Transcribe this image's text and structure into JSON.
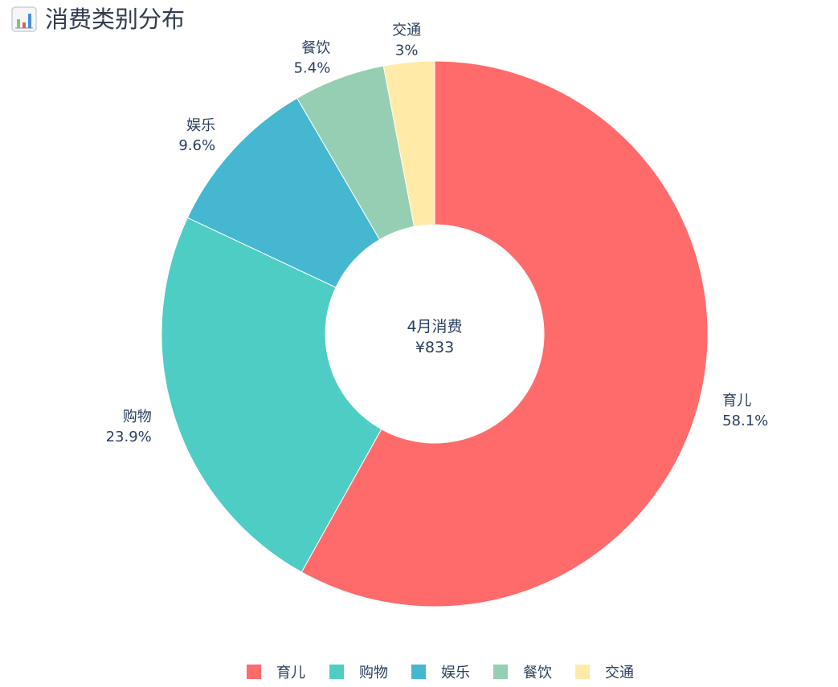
{
  "header": {
    "title": "消费类别分布",
    "icon": "bar-chart-icon"
  },
  "chart_data": {
    "type": "pie",
    "hole": true,
    "center_text": {
      "line1": "4月消费",
      "line2": "¥833"
    },
    "slices": [
      {
        "label": "育儿",
        "percent": 58.1,
        "percent_text": "58.1%",
        "color": "#ff6b6b"
      },
      {
        "label": "购物",
        "percent": 23.9,
        "percent_text": "23.9%",
        "color": "#4ecdc4"
      },
      {
        "label": "娱乐",
        "percent": 9.6,
        "percent_text": "9.6%",
        "color": "#45b7d1"
      },
      {
        "label": "餐饮",
        "percent": 5.4,
        "percent_text": "5.4%",
        "color": "#96ceb4"
      },
      {
        "label": "交通",
        "percent": 3,
        "percent_text": "3%",
        "color": "#ffeaa7"
      }
    ],
    "start": "12 o'clock",
    "direction": "clockwise",
    "legend": {
      "placement": "bottom-center",
      "items": [
        "育儿",
        "购物",
        "娱乐",
        "餐饮",
        "交通"
      ]
    }
  }
}
